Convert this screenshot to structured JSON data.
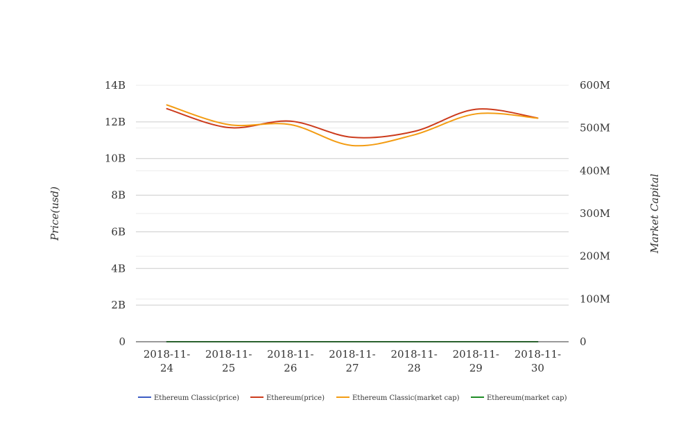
{
  "chart_data": {
    "type": "line",
    "x": [
      "2018-11-24",
      "2018-11-25",
      "2018-11-26",
      "2018-11-27",
      "2018-11-28",
      "2018-11-29",
      "2018-11-30"
    ],
    "x_tick_lines": [
      [
        "2018-11-",
        "24"
      ],
      [
        "2018-11-",
        "25"
      ],
      [
        "2018-11-",
        "26"
      ],
      [
        "2018-11-",
        "27"
      ],
      [
        "2018-11-",
        "28"
      ],
      [
        "2018-11-",
        "29"
      ],
      [
        "2018-11-",
        "30"
      ]
    ],
    "ylabel_left": "Price(usd)",
    "ylabel_right": "Market Capital",
    "ylim_left": [
      0,
      14000000000
    ],
    "ylim_right": [
      0,
      600000000
    ],
    "yticks_left": [
      {
        "value": 0,
        "label": "0"
      },
      {
        "value": 2000000000,
        "label": "2B"
      },
      {
        "value": 4000000000,
        "label": "4B"
      },
      {
        "value": 6000000000,
        "label": "6B"
      },
      {
        "value": 8000000000,
        "label": "8B"
      },
      {
        "value": 10000000000,
        "label": "10B"
      },
      {
        "value": 12000000000,
        "label": "12B"
      },
      {
        "value": 14000000000,
        "label": "14B"
      }
    ],
    "yticks_right": [
      {
        "value": 0,
        "label": "0"
      },
      {
        "value": 100000000,
        "label": "100M"
      },
      {
        "value": 200000000,
        "label": "200M"
      },
      {
        "value": 300000000,
        "label": "300M"
      },
      {
        "value": 400000000,
        "label": "400M"
      },
      {
        "value": 500000000,
        "label": "500M"
      },
      {
        "value": 600000000,
        "label": "600M"
      }
    ],
    "grid": true,
    "legend_position": "bottom",
    "series": [
      {
        "name": "Ethereum Classic(price)",
        "axis": "left",
        "color": "#3b5bc4",
        "values": [
          4.6,
          4.4,
          4.3,
          4.3,
          4.4,
          4.8,
          4.5
        ]
      },
      {
        "name": "Ethereum(price)",
        "axis": "left",
        "color": "#cc3b1c",
        "values": [
          12720000000,
          11690000000,
          12040000000,
          11160000000,
          11480000000,
          12690000000,
          12210000000
        ]
      },
      {
        "name": "Ethereum Classic(market cap)",
        "axis": "right",
        "color": "#f39c12",
        "values": [
          554000000,
          508000000,
          508000000,
          459000000,
          484000000,
          533000000,
          523000000
        ]
      },
      {
        "name": "Ethereum(market cap)",
        "axis": "left",
        "color": "#1e8c24",
        "values": [
          121,
          116,
          118,
          110,
          113,
          126,
          119
        ]
      }
    ]
  }
}
